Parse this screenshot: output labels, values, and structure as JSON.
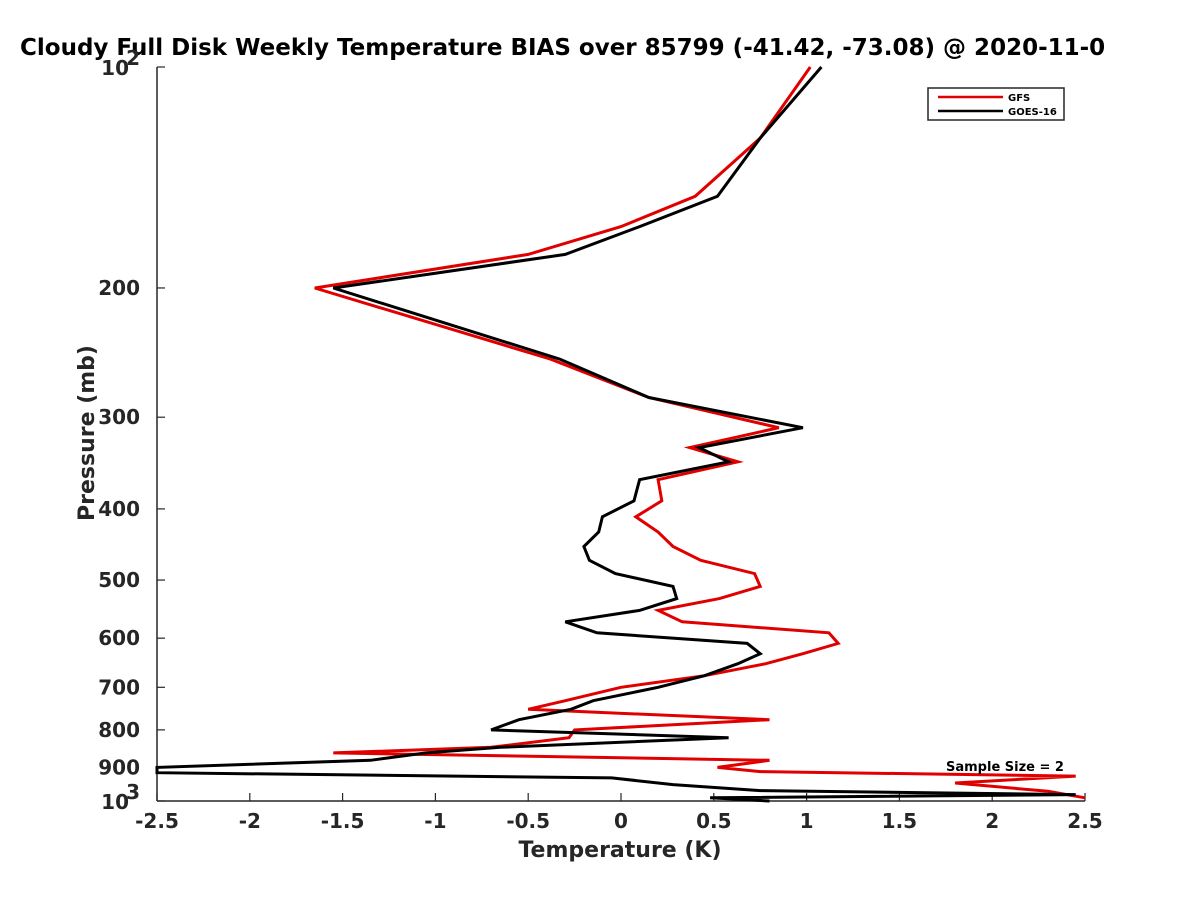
{
  "chart_data": {
    "type": "line",
    "title": "Cloudy Full Disk Weekly Temperature BIAS over 85799 (-41.42, -73.08) @ 2020-11-0",
    "xlabel": "Temperature (K)",
    "ylabel": "Pressure (mb)",
    "xlim": [
      -2.5,
      2.5
    ],
    "ylim": [
      100,
      1000
    ],
    "y_scale": "log",
    "y_reversed": true,
    "x_ticks": [
      "-2.5",
      "-2",
      "-1.5",
      "-1",
      "-0.5",
      "0",
      "0.5",
      "1",
      "1.5",
      "2",
      "2.5"
    ],
    "y_ticks": [
      {
        "value": 100,
        "base": "10",
        "exp": "2"
      },
      {
        "value": 200,
        "label": "200"
      },
      {
        "value": 300,
        "label": "300"
      },
      {
        "value": 400,
        "label": "400"
      },
      {
        "value": 500,
        "label": "500"
      },
      {
        "value": 600,
        "label": "600"
      },
      {
        "value": 700,
        "label": "700"
      },
      {
        "value": 800,
        "label": "800"
      },
      {
        "value": 900,
        "label": "900"
      },
      {
        "value": 1000,
        "base": "10",
        "exp": "3"
      }
    ],
    "grid": false,
    "legend_position": "top-right",
    "annotation": "Sample Size = 2",
    "series": [
      {
        "name": "GFS",
        "color": "#e00000",
        "points": [
          [
            1.02,
            100
          ],
          [
            0.75,
            125
          ],
          [
            0.4,
            150
          ],
          [
            0.0,
            165
          ],
          [
            -0.5,
            180
          ],
          [
            -1.65,
            200
          ],
          [
            -0.38,
            250
          ],
          [
            0.15,
            282
          ],
          [
            0.85,
            310
          ],
          [
            0.37,
            330
          ],
          [
            0.63,
            345
          ],
          [
            0.2,
            365
          ],
          [
            0.22,
            390
          ],
          [
            0.08,
            410
          ],
          [
            0.2,
            430
          ],
          [
            0.28,
            450
          ],
          [
            0.43,
            470
          ],
          [
            0.72,
            490
          ],
          [
            0.75,
            510
          ],
          [
            0.53,
            530
          ],
          [
            0.2,
            550
          ],
          [
            0.33,
            570
          ],
          [
            1.12,
            590
          ],
          [
            1.17,
            610
          ],
          [
            0.98,
            630
          ],
          [
            0.78,
            650
          ],
          [
            0.45,
            675
          ],
          [
            0.0,
            700
          ],
          [
            -0.3,
            730
          ],
          [
            -0.5,
            750
          ],
          [
            0.8,
            775
          ],
          [
            -0.25,
            800
          ],
          [
            -0.28,
            820
          ],
          [
            -0.7,
            845
          ],
          [
            -1.55,
            860
          ],
          [
            0.8,
            880
          ],
          [
            0.52,
            900
          ],
          [
            0.75,
            912
          ],
          [
            2.45,
            925
          ],
          [
            1.8,
            945
          ],
          [
            2.3,
            970
          ],
          [
            2.5,
            990
          ]
        ]
      },
      {
        "name": "GOES-16",
        "color": "#000000",
        "points": [
          [
            1.08,
            100
          ],
          [
            0.75,
            125
          ],
          [
            0.52,
            150
          ],
          [
            0.1,
            165
          ],
          [
            -0.3,
            180
          ],
          [
            -1.55,
            200
          ],
          [
            -0.33,
            250
          ],
          [
            0.15,
            282
          ],
          [
            0.98,
            310
          ],
          [
            0.42,
            330
          ],
          [
            0.58,
            345
          ],
          [
            0.1,
            365
          ],
          [
            0.07,
            390
          ],
          [
            -0.1,
            410
          ],
          [
            -0.12,
            430
          ],
          [
            -0.2,
            450
          ],
          [
            -0.17,
            470
          ],
          [
            -0.03,
            490
          ],
          [
            0.28,
            510
          ],
          [
            0.3,
            530
          ],
          [
            0.1,
            550
          ],
          [
            -0.3,
            570
          ],
          [
            -0.13,
            590
          ],
          [
            0.68,
            610
          ],
          [
            0.75,
            630
          ],
          [
            0.63,
            650
          ],
          [
            0.45,
            675
          ],
          [
            0.2,
            700
          ],
          [
            -0.15,
            730
          ],
          [
            -0.27,
            750
          ],
          [
            -0.55,
            775
          ],
          [
            -0.7,
            800
          ],
          [
            0.58,
            820
          ],
          [
            -0.65,
            845
          ],
          [
            -1.05,
            860
          ],
          [
            -1.35,
            880
          ],
          [
            -2.5,
            900
          ],
          [
            -2.5,
            915
          ],
          [
            -0.05,
            930
          ],
          [
            0.28,
            950
          ],
          [
            0.75,
            968
          ],
          [
            2.45,
            980
          ],
          [
            0.48,
            990
          ],
          [
            0.8,
            1000
          ]
        ]
      }
    ]
  }
}
